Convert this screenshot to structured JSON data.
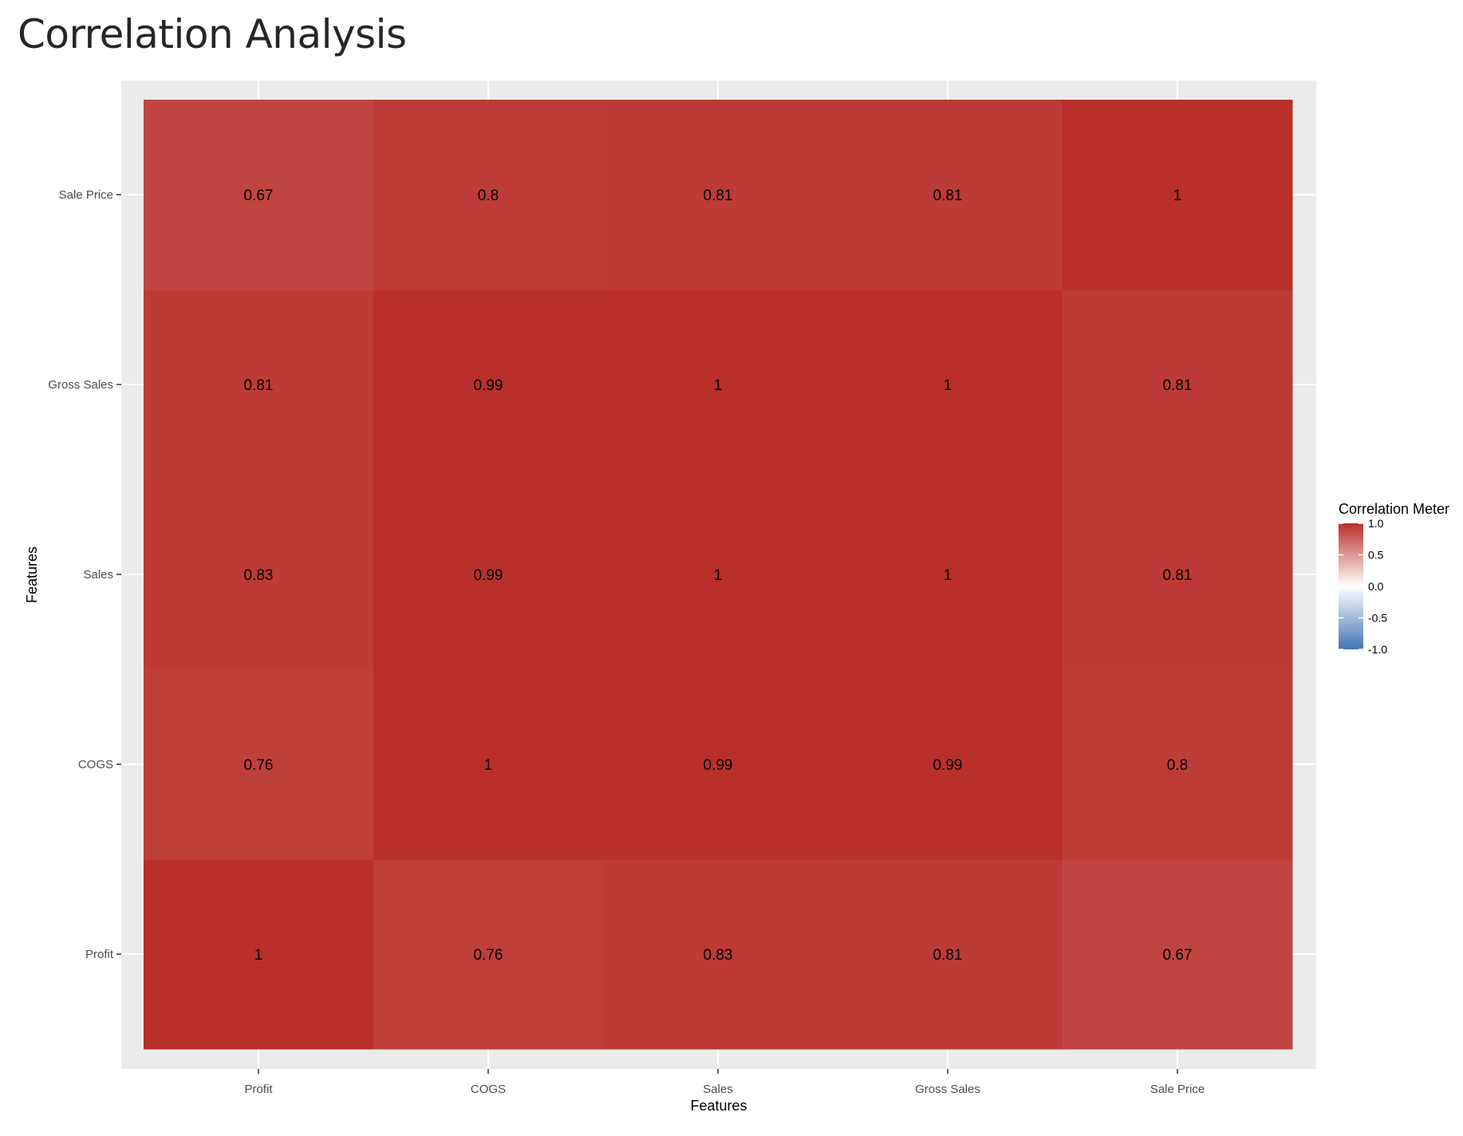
{
  "header": {
    "title": "Correlation Analysis"
  },
  "chart_data": {
    "type": "heatmap",
    "title": "Correlation Analysis",
    "xlabel": "Features",
    "ylabel": "Features",
    "x_categories": [
      "Profit",
      "COGS",
      "Sales",
      "Gross Sales",
      "Sale Price"
    ],
    "y_categories": [
      "Profit",
      "COGS",
      "Sales",
      "Gross Sales",
      "Sale Price"
    ],
    "values": [
      [
        1,
        0.76,
        0.83,
        0.81,
        0.67
      ],
      [
        0.76,
        1,
        0.99,
        0.99,
        0.8
      ],
      [
        0.83,
        0.99,
        1,
        1,
        0.81
      ],
      [
        0.81,
        0.99,
        1,
        1,
        0.81
      ],
      [
        0.67,
        0.8,
        0.81,
        0.81,
        1
      ]
    ],
    "grid": true,
    "legend": {
      "title": "Correlation Meter",
      "placement": "right",
      "range": [
        -1,
        1
      ],
      "ticks": [
        "1.0",
        "0.5",
        "0.0",
        "-0.5",
        "-1.0"
      ],
      "tick_values": [
        1,
        0.5,
        0,
        -0.5,
        -1
      ],
      "colors": {
        "low": "#4575b4",
        "mid": "#ffffff",
        "high": "#b92f2a"
      }
    },
    "panel_background": "#ebebeb",
    "gridline_color": "#ffffff"
  }
}
